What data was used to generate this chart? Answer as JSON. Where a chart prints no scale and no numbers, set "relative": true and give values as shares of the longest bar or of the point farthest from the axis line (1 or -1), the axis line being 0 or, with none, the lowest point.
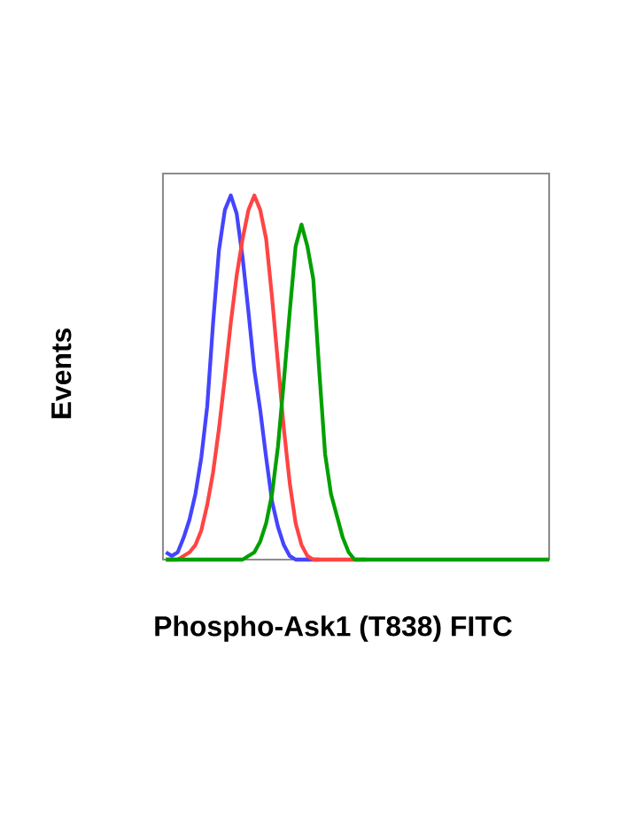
{
  "chart_data": {
    "type": "line",
    "xlabel": "Phospho-Ask1 (T838) FITC",
    "ylabel": "Events",
    "relative": true,
    "tick_labels": false,
    "marker": "none",
    "line_style": "solid",
    "categories": [
      null,
      null,
      null,
      null,
      null,
      null,
      null,
      null,
      null,
      null,
      null,
      null,
      null,
      null,
      null,
      null,
      null,
      null,
      null,
      null,
      null,
      null,
      null,
      null,
      null,
      null,
      null,
      null,
      null,
      null,
      null,
      null,
      null,
      null,
      null,
      null,
      null,
      null,
      null,
      null,
      null,
      null,
      null,
      null,
      null,
      null,
      null,
      null,
      null,
      null,
      null,
      null,
      null,
      null,
      null,
      null,
      null,
      null,
      null,
      null,
      null,
      null,
      null,
      null,
      null,
      null
    ],
    "series": [
      {
        "color": "#4444ff",
        "values": [
          0.02,
          0.01,
          0.02,
          0.06,
          0.11,
          0.18,
          0.28,
          0.42,
          0.65,
          0.85,
          0.96,
          1,
          0.95,
          0.83,
          0.68,
          0.52,
          0.41,
          0.28,
          0.16,
          0.09,
          0.04,
          0.01,
          0,
          0,
          0,
          0,
          0,
          null,
          null,
          null,
          null,
          null,
          null,
          null,
          null,
          null,
          null,
          null,
          null,
          null,
          null,
          null,
          null,
          null,
          null,
          null,
          null,
          null,
          null,
          null,
          null,
          null,
          null,
          null,
          null,
          null,
          null,
          null,
          null,
          null,
          null,
          null,
          null,
          null,
          null,
          null
        ]
      },
      {
        "color": "#ff4444",
        "values": [
          0,
          0,
          0,
          0.01,
          0.02,
          0.04,
          0.08,
          0.15,
          0.24,
          0.36,
          0.5,
          0.65,
          0.78,
          0.88,
          0.96,
          1,
          0.96,
          0.88,
          0.72,
          0.54,
          0.36,
          0.21,
          0.1,
          0.04,
          0.01,
          0,
          0,
          0,
          0,
          0,
          0,
          0,
          0,
          0,
          0,
          null,
          null,
          null,
          null,
          null,
          null,
          null,
          null,
          null,
          null,
          null,
          null,
          null,
          null,
          null,
          null,
          null,
          null,
          null,
          null,
          null,
          null,
          null,
          null,
          null,
          null,
          null,
          null,
          null,
          null,
          null
        ]
      },
      {
        "color": "#00a000",
        "values": [
          0,
          0,
          0,
          0,
          0,
          0,
          0,
          0,
          0,
          0,
          0,
          0,
          0,
          0,
          0.01,
          0.02,
          0.05,
          0.1,
          0.18,
          0.31,
          0.49,
          0.68,
          0.86,
          0.92,
          0.86,
          0.77,
          0.52,
          0.29,
          0.18,
          0.12,
          0.06,
          0.02,
          0,
          0,
          0,
          0,
          0,
          0,
          0,
          0,
          0,
          0,
          0,
          0,
          0,
          0,
          0,
          0,
          0,
          0,
          0,
          0,
          0,
          0,
          0,
          0,
          0,
          0,
          0,
          0,
          0,
          0,
          0,
          0,
          0,
          0
        ]
      }
    ]
  }
}
